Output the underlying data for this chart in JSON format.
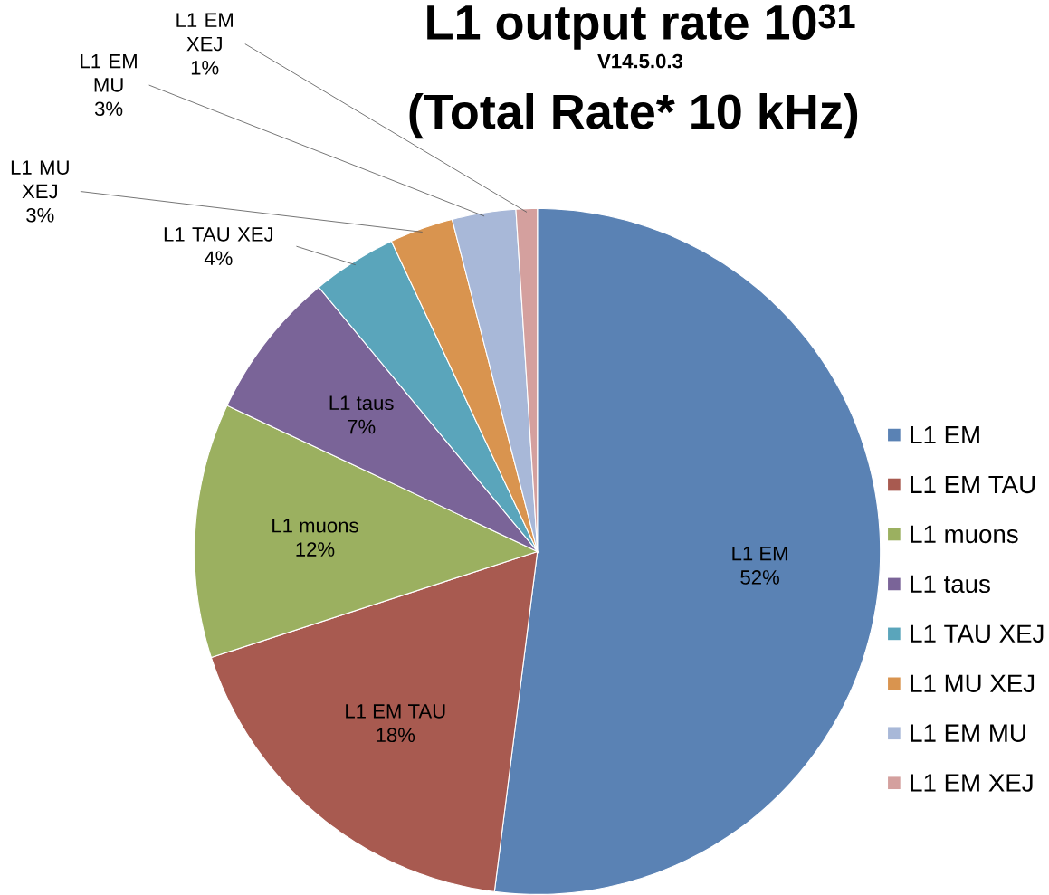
{
  "chart_data": {
    "type": "pie",
    "title": "L1 output rate 10$^{31}$",
    "subtitle": "V14.5.0.3",
    "annotations": [
      "(Total Rate* 10 kHz)"
    ],
    "categories": [
      "L1 EM",
      "L1 EM TAU",
      "L1 muons",
      "L1 taus",
      "L1 TAU XEJ",
      "L1 MU XEJ",
      "L1 EM MU",
      "L1 EM XEJ"
    ],
    "values": [
      52,
      18,
      12,
      7,
      4,
      3,
      3,
      1
    ],
    "value_labels": [
      "52%",
      "18%",
      "12%",
      "7%",
      "4%",
      "3%",
      "3%",
      "1%"
    ],
    "colors": [
      "#5a82b4",
      "#a85a50",
      "#9bb060",
      "#7a6498",
      "#5aa5bb",
      "#d9944f",
      "#a8b8d8",
      "#d4a09e"
    ],
    "legend": "right"
  }
}
